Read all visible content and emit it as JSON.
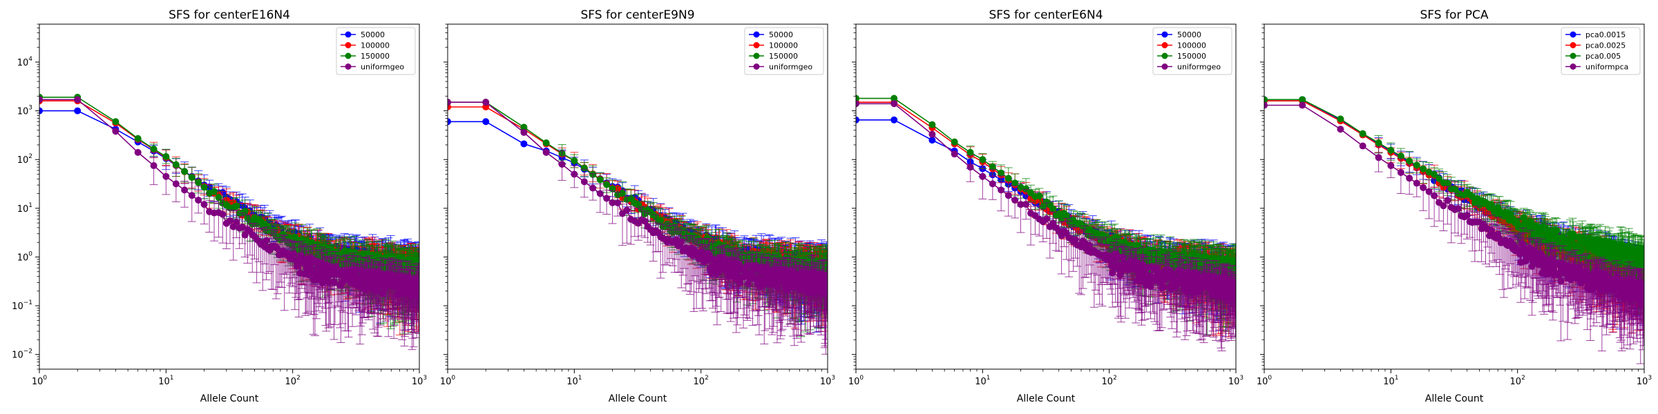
{
  "figure": {
    "x_label": "Allele Count",
    "x_ticks": [
      {
        "value": 1,
        "base": "10",
        "exp": "0"
      },
      {
        "value": 10,
        "base": "10",
        "exp": "1"
      },
      {
        "value": 100,
        "base": "10",
        "exp": "2"
      },
      {
        "value": 1000,
        "base": "10",
        "exp": "3"
      }
    ],
    "y_ticks": [
      {
        "value": 0.01,
        "base": "10",
        "exp": "−2"
      },
      {
        "value": 0.1,
        "base": "10",
        "exp": "−1"
      },
      {
        "value": 1,
        "base": "10",
        "exp": "0"
      },
      {
        "value": 10,
        "base": "10",
        "exp": "1"
      },
      {
        "value": 100,
        "base": "10",
        "exp": "2"
      },
      {
        "value": 1000,
        "base": "10",
        "exp": "3"
      },
      {
        "value": 10000,
        "base": "10",
        "exp": "4"
      }
    ]
  },
  "chart_data": [
    {
      "type": "line",
      "title": "SFS for centerE16N4",
      "xlabel": "Allele Count",
      "ylabel": "",
      "x_scale": "log",
      "y_scale": "log",
      "xlim": [
        1,
        1000
      ],
      "ylim": [
        0.005,
        60000
      ],
      "legend_position": "top-right",
      "series": [
        {
          "name": "50000",
          "color": "#0000ff",
          "y_first": 1000,
          "points": [
            [
              2,
              1000
            ],
            [
              4,
              420
            ],
            [
              6,
              230
            ],
            [
              8,
              150
            ],
            [
              10,
              105
            ],
            [
              20,
              30
            ],
            [
              50,
              7
            ],
            [
              100,
              2.5
            ],
            [
              200,
              1.2
            ],
            [
              1000,
              0.7
            ]
          ]
        },
        {
          "name": "100000",
          "color": "#ff0000",
          "y_first": 1600,
          "points": [
            [
              2,
              1600
            ],
            [
              4,
              560
            ],
            [
              6,
              260
            ],
            [
              8,
              160
            ],
            [
              10,
              110
            ],
            [
              20,
              28
            ],
            [
              50,
              6
            ],
            [
              100,
              2.2
            ],
            [
              200,
              1.0
            ],
            [
              1000,
              0.6
            ]
          ]
        },
        {
          "name": "150000",
          "color": "#008000",
          "y_first": 1900,
          "points": [
            [
              2,
              1900
            ],
            [
              4,
              600
            ],
            [
              6,
              270
            ],
            [
              8,
              165
            ],
            [
              10,
              115
            ],
            [
              20,
              27
            ],
            [
              50,
              5.5
            ],
            [
              100,
              2.0
            ],
            [
              200,
              1.0
            ],
            [
              1000,
              0.6
            ]
          ]
        },
        {
          "name": "uniformgeo",
          "color": "#800080",
          "y_first": 1700,
          "points": [
            [
              2,
              1700
            ],
            [
              4,
              380
            ],
            [
              6,
              140
            ],
            [
              8,
              75
            ],
            [
              10,
              45
            ],
            [
              20,
              12
            ],
            [
              50,
              2.5
            ],
            [
              100,
              0.9
            ],
            [
              200,
              0.45
            ],
            [
              1000,
              0.25
            ]
          ]
        }
      ]
    },
    {
      "type": "line",
      "title": "SFS for centerE9N9",
      "xlabel": "Allele Count",
      "ylabel": "",
      "x_scale": "log",
      "y_scale": "log",
      "xlim": [
        1,
        1000
      ],
      "ylim": [
        0.005,
        60000
      ],
      "legend_position": "top-right",
      "series": [
        {
          "name": "50000",
          "color": "#0000ff",
          "y_first": 600,
          "points": [
            [
              2,
              600
            ],
            [
              4,
              210
            ],
            [
              6,
              150
            ],
            [
              8,
              110
            ],
            [
              10,
              85
            ],
            [
              20,
              28
            ],
            [
              50,
              6
            ],
            [
              100,
              2.3
            ],
            [
              200,
              1.1
            ],
            [
              1000,
              0.7
            ]
          ]
        },
        {
          "name": "100000",
          "color": "#ff0000",
          "y_first": 1200,
          "points": [
            [
              2,
              1200
            ],
            [
              4,
              420
            ],
            [
              6,
              210
            ],
            [
              8,
              130
            ],
            [
              10,
              95
            ],
            [
              20,
              26
            ],
            [
              50,
              5.5
            ],
            [
              100,
              2.1
            ],
            [
              200,
              1.0
            ],
            [
              1000,
              0.6
            ]
          ]
        },
        {
          "name": "150000",
          "color": "#008000",
          "y_first": 1500,
          "points": [
            [
              2,
              1500
            ],
            [
              4,
              460
            ],
            [
              6,
              220
            ],
            [
              8,
              135
            ],
            [
              10,
              95
            ],
            [
              20,
              25
            ],
            [
              50,
              5
            ],
            [
              100,
              1.9
            ],
            [
              200,
              0.9
            ],
            [
              1000,
              0.55
            ]
          ]
        },
        {
          "name": "uniformgeo",
          "color": "#800080",
          "y_first": 1500,
          "points": [
            [
              2,
              1500
            ],
            [
              4,
              360
            ],
            [
              6,
              140
            ],
            [
              8,
              80
            ],
            [
              10,
              50
            ],
            [
              20,
              13
            ],
            [
              50,
              2.8
            ],
            [
              100,
              1.0
            ],
            [
              200,
              0.5
            ],
            [
              1000,
              0.3
            ]
          ]
        }
      ]
    },
    {
      "type": "line",
      "title": "SFS for centerE6N4",
      "xlabel": "Allele Count",
      "ylabel": "",
      "x_scale": "log",
      "y_scale": "log",
      "xlim": [
        1,
        1000
      ],
      "ylim": [
        0.005,
        60000
      ],
      "legend_position": "top-right",
      "series": [
        {
          "name": "50000",
          "color": "#0000ff",
          "y_first": 650,
          "points": [
            [
              2,
              650
            ],
            [
              4,
              250
            ],
            [
              6,
              150
            ],
            [
              8,
              90
            ],
            [
              10,
              65
            ],
            [
              20,
              22
            ],
            [
              50,
              5.5
            ],
            [
              100,
              2.1
            ],
            [
              200,
              1.0
            ],
            [
              1000,
              0.6
            ]
          ]
        },
        {
          "name": "100000",
          "color": "#ff0000",
          "y_first": 1500,
          "points": [
            [
              2,
              1500
            ],
            [
              4,
              450
            ],
            [
              6,
              210
            ],
            [
              8,
              125
            ],
            [
              10,
              90
            ],
            [
              20,
              25
            ],
            [
              50,
              5
            ],
            [
              100,
              1.9
            ],
            [
              200,
              0.95
            ],
            [
              1000,
              0.55
            ]
          ]
        },
        {
          "name": "150000",
          "color": "#008000",
          "y_first": 1800,
          "points": [
            [
              2,
              1800
            ],
            [
              4,
              520
            ],
            [
              6,
              230
            ],
            [
              8,
              140
            ],
            [
              10,
              100
            ],
            [
              20,
              27
            ],
            [
              50,
              5.5
            ],
            [
              100,
              2.0
            ],
            [
              200,
              1.0
            ],
            [
              1000,
              0.6
            ]
          ]
        },
        {
          "name": "uniformgeo",
          "color": "#800080",
          "y_first": 1400,
          "points": [
            [
              2,
              1400
            ],
            [
              4,
              330
            ],
            [
              6,
              130
            ],
            [
              8,
              70
            ],
            [
              10,
              45
            ],
            [
              20,
              12
            ],
            [
              50,
              2.5
            ],
            [
              100,
              0.9
            ],
            [
              200,
              0.45
            ],
            [
              1000,
              0.25
            ]
          ]
        }
      ]
    },
    {
      "type": "line",
      "title": "SFS for PCA",
      "xlabel": "Allele Count",
      "ylabel": "",
      "x_scale": "log",
      "y_scale": "log",
      "xlim": [
        1,
        1000
      ],
      "ylim": [
        0.005,
        60000
      ],
      "legend_position": "top-right",
      "series": [
        {
          "name": "pca0.0015",
          "color": "#0000ff",
          "y_first": 1700,
          "points": [
            [
              2,
              1700
            ],
            [
              4,
              650
            ],
            [
              6,
              330
            ],
            [
              8,
              210
            ],
            [
              10,
              150
            ],
            [
              20,
              50
            ],
            [
              50,
              12
            ],
            [
              100,
              4.5
            ],
            [
              200,
              2.0
            ],
            [
              1000,
              0.6
            ]
          ]
        },
        {
          "name": "pca0.0025",
          "color": "#ff0000",
          "y_first": 1600,
          "points": [
            [
              2,
              1600
            ],
            [
              4,
              620
            ],
            [
              6,
              320
            ],
            [
              8,
              200
            ],
            [
              10,
              140
            ],
            [
              20,
              48
            ],
            [
              50,
              11
            ],
            [
              100,
              4.0
            ],
            [
              200,
              1.8
            ],
            [
              1000,
              0.5
            ]
          ]
        },
        {
          "name": "pca0.005",
          "color": "#008000",
          "y_first": 1700,
          "points": [
            [
              2,
              1700
            ],
            [
              4,
              680
            ],
            [
              6,
              340
            ],
            [
              8,
              220
            ],
            [
              10,
              155
            ],
            [
              20,
              55
            ],
            [
              50,
              14
            ],
            [
              100,
              5.5
            ],
            [
              200,
              2.5
            ],
            [
              1000,
              1.0
            ]
          ]
        },
        {
          "name": "uniformpca",
          "color": "#800080",
          "y_first": 1300,
          "points": [
            [
              2,
              1300
            ],
            [
              4,
              420
            ],
            [
              6,
              190
            ],
            [
              8,
              110
            ],
            [
              10,
              75
            ],
            [
              20,
              22
            ],
            [
              50,
              4.5
            ],
            [
              100,
              1.5
            ],
            [
              200,
              0.6
            ],
            [
              1000,
              0.2
            ]
          ]
        }
      ]
    }
  ]
}
